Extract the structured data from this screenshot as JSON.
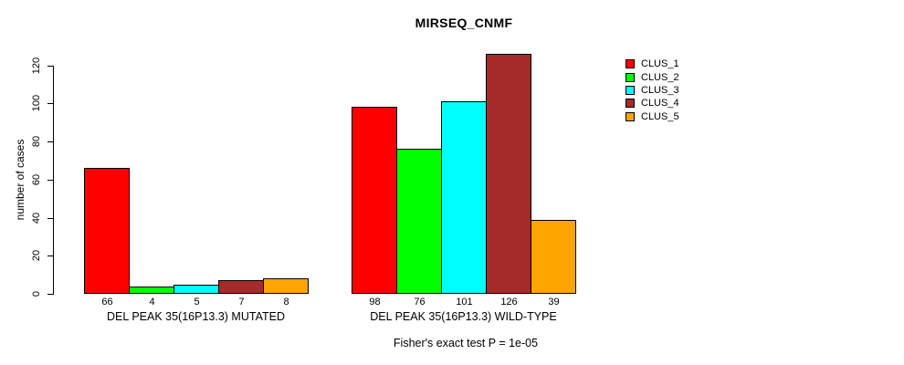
{
  "title": "MIRSEQ_CNMF",
  "ylabel": "number of cases",
  "footer": "Fisher's exact test P = 1e-05",
  "legend": {
    "entries": [
      {
        "label": "CLUS_1",
        "color": "#FF0000"
      },
      {
        "label": "CLUS_2",
        "color": "#00FF00"
      },
      {
        "label": "CLUS_3",
        "color": "#00FFFF"
      },
      {
        "label": "CLUS_4",
        "color": "#A52A2A"
      },
      {
        "label": "CLUS_5",
        "color": "#FFA500"
      }
    ]
  },
  "chart_data": {
    "type": "bar",
    "title": "MIRSEQ_CNMF",
    "ylabel": "number of cases",
    "xlabel": "",
    "ylim": [
      0,
      120
    ],
    "yticks": [
      0,
      20,
      40,
      60,
      80,
      100,
      120
    ],
    "grid": false,
    "legend_position": "right",
    "bar_value_labels": true,
    "categories": [
      "DEL PEAK 35(16P13.3) MUTATED",
      "DEL PEAK 35(16P13.3) WILD-TYPE"
    ],
    "series": [
      {
        "name": "CLUS_1",
        "color": "#FF0000",
        "values": [
          66,
          98
        ]
      },
      {
        "name": "CLUS_2",
        "color": "#00FF00",
        "values": [
          4,
          76
        ]
      },
      {
        "name": "CLUS_3",
        "color": "#00FFFF",
        "values": [
          5,
          101
        ]
      },
      {
        "name": "CLUS_4",
        "color": "#A52A2A",
        "values": [
          7,
          126
        ]
      },
      {
        "name": "CLUS_5",
        "color": "#FFA500",
        "values": [
          8,
          39
        ]
      }
    ],
    "annotation": "Fisher's exact test P = 1e-05"
  }
}
